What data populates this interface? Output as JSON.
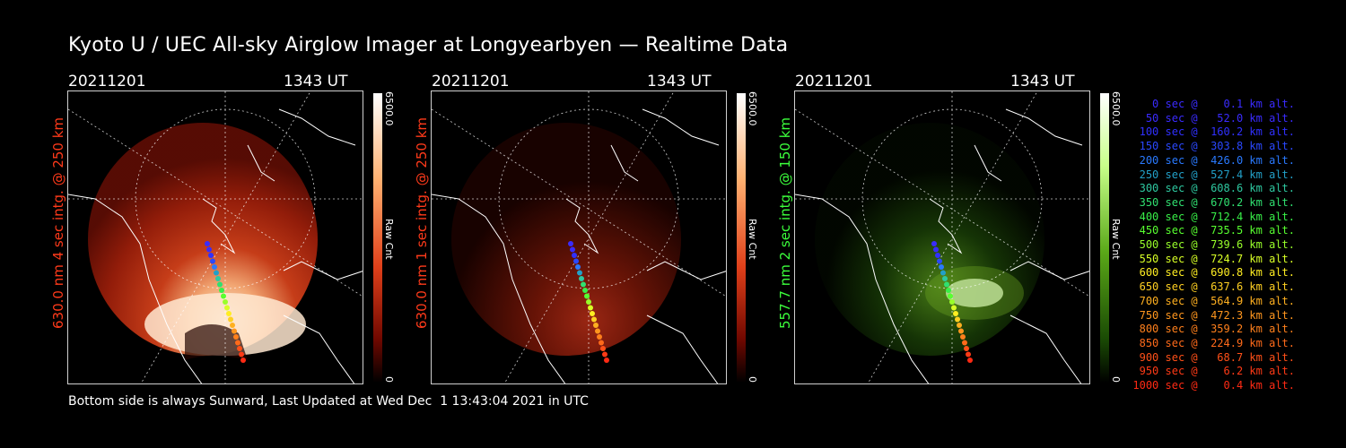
{
  "title": "Kyoto U / UEC All-sky Airglow Imager at Longyearbyen — Realtime Data",
  "panels": [
    {
      "date": "20211201",
      "time": "1343 UT",
      "side_label": "630.0 nm  4 sec intg. @ 250 km",
      "label_color": "#ff3a1a",
      "cbar_max": "6500.0",
      "cbar_min": "0",
      "cbar_unit": "Raw Cnt",
      "cbar_color": "red"
    },
    {
      "date": "20211201",
      "time": "1343 UT",
      "side_label": "630.0 nm  1 sec intg. @ 250 km",
      "label_color": "#ff3a1a",
      "cbar_max": "6500.0",
      "cbar_min": "0",
      "cbar_unit": "Raw Cnt",
      "cbar_color": "red"
    },
    {
      "date": "20211201",
      "time": "1343 UT",
      "side_label": "557.7 nm  2 sec intg. @ 150 km",
      "label_color": "#3cff3c",
      "cbar_max": "6500.0",
      "cbar_min": "0",
      "cbar_unit": "Raw Cnt",
      "cbar_color": "green"
    }
  ],
  "legend": [
    {
      "text": "   0 sec @    0.1 km alt.",
      "color": "#3a2bff"
    },
    {
      "text": "  50 sec @   52.0 km alt.",
      "color": "#3a2bff"
    },
    {
      "text": " 100 sec @  160.2 km alt.",
      "color": "#3030ff"
    },
    {
      "text": " 150 sec @  303.8 km alt.",
      "color": "#2a48ff"
    },
    {
      "text": " 200 sec @  426.0 km alt.",
      "color": "#2a7aff"
    },
    {
      "text": " 250 sec @  527.4 km alt.",
      "color": "#22a0c8"
    },
    {
      "text": " 300 sec @  608.6 km alt.",
      "color": "#2ec8a0"
    },
    {
      "text": " 350 sec @  670.2 km alt.",
      "color": "#30e070"
    },
    {
      "text": " 400 sec @  712.4 km alt.",
      "color": "#38f048"
    },
    {
      "text": " 450 sec @  735.5 km alt.",
      "color": "#58ff30"
    },
    {
      "text": " 500 sec @  739.6 km alt.",
      "color": "#98ff2a"
    },
    {
      "text": " 550 sec @  724.7 km alt.",
      "color": "#d8ff26"
    },
    {
      "text": " 600 sec @  690.8 km alt.",
      "color": "#ffee22"
    },
    {
      "text": " 650 sec @  637.6 km alt.",
      "color": "#ffd022"
    },
    {
      "text": " 700 sec @  564.9 km alt.",
      "color": "#ffb020"
    },
    {
      "text": " 750 sec @  472.3 km alt.",
      "color": "#ff961e"
    },
    {
      "text": " 800 sec @  359.2 km alt.",
      "color": "#ff801c"
    },
    {
      "text": " 850 sec @  224.9 km alt.",
      "color": "#ff6a1a"
    },
    {
      "text": " 900 sec @   68.7 km alt.",
      "color": "#ff5018"
    },
    {
      "text": " 950 sec @    6.2 km alt.",
      "color": "#ff3a16"
    },
    {
      "text": "1000 sec @    0.4 km alt.",
      "color": "#ff2a14"
    }
  ],
  "footer": "Bottom side is always Sunward, Last Updated at Wed Dec  1 13:43:04 2021 in UTC"
}
